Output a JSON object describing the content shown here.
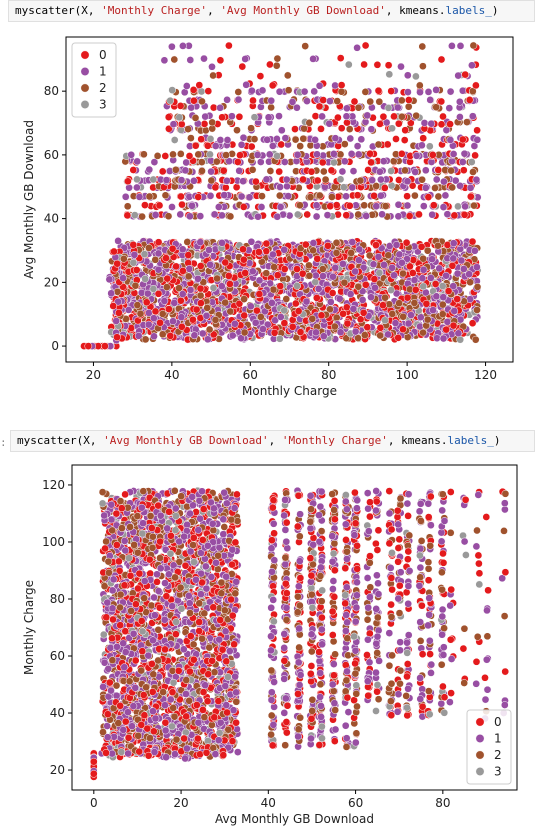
{
  "cells": [
    {
      "prompt": "",
      "code_parts": [
        "myscatter(X, ",
        "'Monthly Charge'",
        ", ",
        "'Avg Monthly GB Download'",
        ", kmeans.",
        "labels_",
        ")"
      ]
    },
    {
      "prompt": ":",
      "code_parts": [
        "myscatter(X, ",
        "'Avg Monthly GB Download'",
        ", ",
        "'Monthly Charge'",
        ", kmeans.",
        "labels_",
        ")"
      ]
    }
  ],
  "colors": {
    "cluster_0": "#e41a1c",
    "cluster_1": "#984ea3",
    "cluster_2": "#a0522d",
    "cluster_3": "#999999"
  },
  "chart_data": [
    {
      "type": "scatter",
      "xlabel": "Monthly Charge",
      "ylabel": "Avg Monthly GB Download",
      "xlim": [
        13,
        127
      ],
      "ylim": [
        -5,
        97
      ],
      "xticks": [
        "20",
        "40",
        "60",
        "80",
        "100",
        "120"
      ],
      "xtick_values": [
        20,
        40,
        60,
        80,
        100,
        120
      ],
      "yticks": [
        "0",
        "20",
        "40",
        "60",
        "80"
      ],
      "ytick_values": [
        0,
        20,
        40,
        60,
        80
      ],
      "legend_placement": "top-left",
      "series": [
        {
          "name": "0"
        },
        {
          "name": "1"
        },
        {
          "name": "2"
        },
        {
          "name": "3"
        }
      ],
      "grid": false
    },
    {
      "type": "scatter",
      "xlabel": "Avg Monthly GB Download",
      "ylabel": "Monthly Charge",
      "xlim": [
        -5,
        97
      ],
      "ylim": [
        13,
        127
      ],
      "xticks": [
        "0",
        "20",
        "40",
        "60",
        "80"
      ],
      "xtick_values": [
        0,
        20,
        40,
        60,
        80
      ],
      "yticks": [
        "20",
        "40",
        "60",
        "80",
        "100",
        "120"
      ],
      "ytick_values": [
        20,
        40,
        60,
        80,
        100,
        120
      ],
      "legend_placement": "bottom-right",
      "series": [
        {
          "name": "0"
        },
        {
          "name": "1"
        },
        {
          "name": "2"
        },
        {
          "name": "3"
        }
      ],
      "grid": false
    }
  ]
}
